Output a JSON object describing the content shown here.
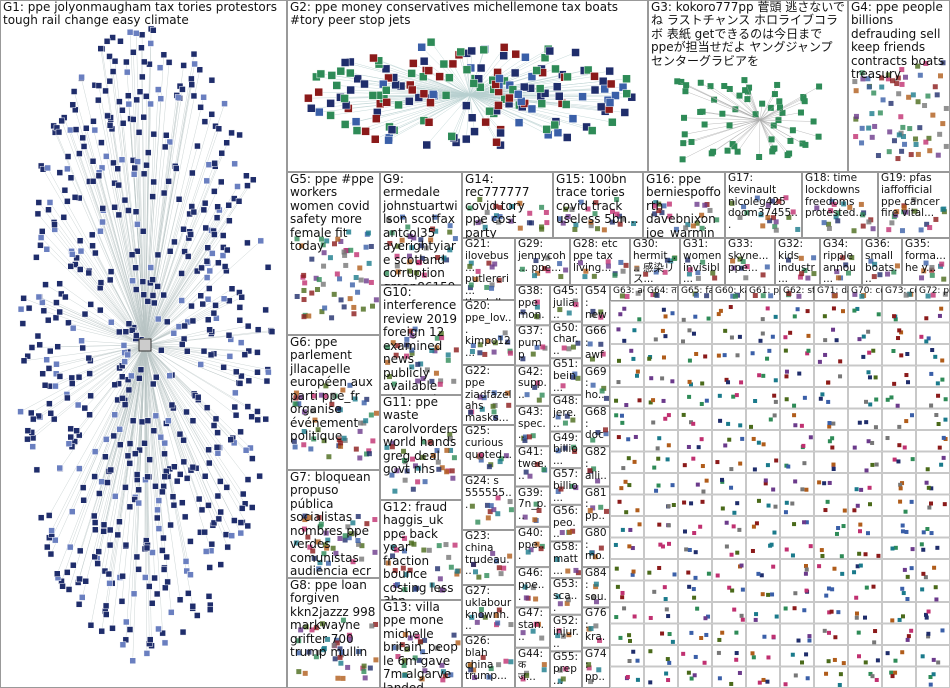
{
  "groups": [
    {
      "label": "G1: ppe jolyonmaugham tax tories protestors tough rail change easy climate"
    },
    {
      "label": "G2: ppe money conservatives michellemone tax boats #tory peer stop jets"
    },
    {
      "label": "G3: kokoro777pp 菅頭 逃さないでね ラストチャンス ホロライブコラボ 表紙 getできるのは今日まで ppeが担当せだよ ヤングジャンプ センターグラビアを"
    },
    {
      "label": "G4: ppe people billions defrauding sell keep friends contracts boats treasury"
    },
    {
      "label": "G5: ppe #ppe workers women covid safety more female fit today"
    },
    {
      "label": "G9: ermedale johnstuartwilson scotfax antcol35 ayerightyiare scotland corruption gman861591..."
    },
    {
      "label": "G14: rec777777 covid tory ppe cost party billions..."
    },
    {
      "label": "G15: 100bn trace tories covid track useless 5bn..."
    },
    {
      "label": "G16: ppe berniespofforth davebnixon joe_warmingt..."
    },
    {
      "label": "G17: kevinault nicoleg425 doom37455..."
    },
    {
      "label": "G18: time lockdowns freedoms protested..."
    },
    {
      "label": "G19: pfas iaffofficial ppe cancer fire vital..."
    },
    {
      "label": "G21: ilovebus... putlercri... thedelb..."
    },
    {
      "label": "G29: jennycoh... ppe..."
    },
    {
      "label": "G28: etc ppe tax living..."
    },
    {
      "label": "G30: hermit_... 感染リス..."
    },
    {
      "label": "G31: women invisibl..."
    },
    {
      "label": "G33: skyne... ppe..."
    },
    {
      "label": "G32: kids industr..."
    },
    {
      "label": "G34: ripple annou..."
    },
    {
      "label": "G36: small boats..."
    },
    {
      "label": "G35: forma... he y..."
    },
    {
      "label": "G10: interference review 2019 foreign 12 examined news publicly available redacted"
    },
    {
      "label": "G6: ppe parlement jllacapelle européen aux parti ppe_fr organise événement politique"
    },
    {
      "label": "G11: ppe waste carolvorders world hands greg deal govt nhs"
    },
    {
      "label": "G7: bloquean propuso pública socialistas nombres ppe verdes comunistas audiencia ecr"
    },
    {
      "label": "G12: fraud haggis_uk ppe back year fraction bounce costing less 3bn"
    },
    {
      "label": "G8: ppe loan forgiven kkn2jazzz 998 markwayne grifter 700 trump mullin"
    },
    {
      "label": "G13: villa ppe mone michelle britain_people 6m gave 7m algarve landed"
    },
    {
      "label": "G20: ppe_lov... kimpo12..."
    },
    {
      "label": "G22: ppe ziadfazel ahs masks..."
    },
    {
      "label": "G25: curious quoted..."
    },
    {
      "label": "G24: s 555555..."
    },
    {
      "label": "G23: china trudeau..."
    },
    {
      "label": "G27: uklabour knownh..."
    },
    {
      "label": "G26: blah china trump..."
    },
    {
      "label": "G38: ppe mon..."
    },
    {
      "label": "G37: pump"
    },
    {
      "label": "G42: supp..."
    },
    {
      "label": "G43: spec..."
    },
    {
      "label": "G41: twee..."
    },
    {
      "label": "G39: 7n_p..."
    },
    {
      "label": "G40: ppe..."
    },
    {
      "label": "G46: ppe..."
    },
    {
      "label": "G47: stan..."
    },
    {
      "label": "G44: क ज..."
    },
    {
      "label": "G45: julia..."
    },
    {
      "label": "G50: char..."
    },
    {
      "label": "G51: bein..."
    },
    {
      "label": "G48: jere..."
    },
    {
      "label": "G49: billio..."
    },
    {
      "label": "G57: billio..."
    },
    {
      "label": "G56: peo..."
    },
    {
      "label": "G58: matt..."
    },
    {
      "label": "G53: sca..."
    },
    {
      "label": "G52: injur..."
    },
    {
      "label": "G55: prep..."
    },
    {
      "label": "G54: new..."
    },
    {
      "label": "G66: awf"
    },
    {
      "label": "G69: ho..."
    },
    {
      "label": "G68: doc..."
    },
    {
      "label": "G82: alli..."
    },
    {
      "label": "G81: pp..."
    },
    {
      "label": "G80: mo..."
    },
    {
      "label": "G84: sou..."
    },
    {
      "label": "G76: kra..."
    },
    {
      "label": "G74: pp..."
    },
    {
      "label": "G63: acc..."
    },
    {
      "label": "G64: त न..."
    },
    {
      "label": "G65: fau..."
    },
    {
      "label": "G60: kan..."
    },
    {
      "label": "G61: ppe..."
    },
    {
      "label": "G62: stop..."
    },
    {
      "label": "G71: day..."
    },
    {
      "label": "G70: cou..."
    },
    {
      "label": "G73: cou..."
    },
    {
      "label": "G72: pro..."
    }
  ]
}
